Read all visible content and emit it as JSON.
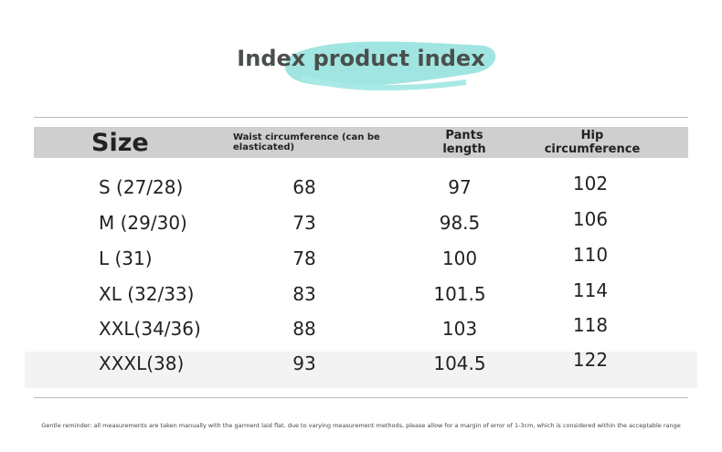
{
  "header": {
    "title": "Index product index"
  },
  "table": {
    "columns": [
      "Size",
      "Waist circumference (can be elasticated)",
      "Pants length",
      "Hip circumference"
    ],
    "rows": [
      [
        "S (27/28)",
        "68",
        "97",
        "102"
      ],
      [
        "M (29/30)",
        "73",
        "98.5",
        "106"
      ],
      [
        "L (31)",
        "78",
        "100",
        "110"
      ],
      [
        "XL (32/33)",
        "83",
        "101.5",
        "114"
      ],
      [
        "XXL(34/36)",
        "88",
        "103",
        "118"
      ],
      [
        "XXXL(38)",
        "93",
        "104.5",
        "122"
      ]
    ]
  },
  "footer": {
    "note": "Gentle reminder: all measurements are taken manually with the garment laid flat. due to varying measurement methods, please allow for a margin of error of 1-3cm, which is considered within the acceptable range"
  }
}
